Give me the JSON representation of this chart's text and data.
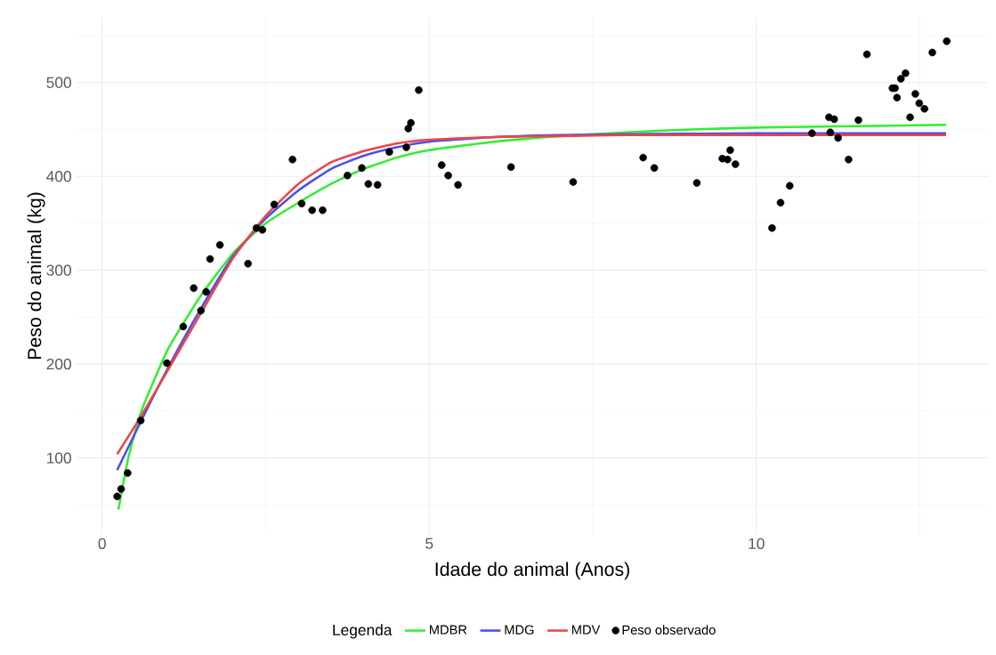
{
  "chart_data": {
    "type": "scatter",
    "xlabel": "Idade do animal (Anos)",
    "ylabel": "Peso do animal (kg)",
    "legend_title": "Legenda",
    "xlim": [
      -0.4,
      13.55
    ],
    "ylim": [
      19,
      569
    ],
    "xticks": [
      0,
      5,
      10
    ],
    "yticks": [
      100,
      200,
      300,
      400,
      500
    ],
    "grid": true,
    "legend": "bottom",
    "series": [
      {
        "name": "MDBR",
        "type": "line",
        "color": "#33ee33",
        "marker": "none",
        "x": [
          0.25,
          0.4,
          0.6,
          1,
          1.5,
          2,
          2.5,
          3,
          3.5,
          4,
          4.5,
          5,
          6,
          7,
          8,
          9,
          10,
          11,
          12,
          12.9
        ],
        "values": [
          45,
          100,
          150,
          215,
          272,
          318,
          350,
          372,
          392,
          408,
          420,
          428,
          437,
          443,
          447,
          450,
          452,
          453,
          454,
          455
        ]
      },
      {
        "name": "MDG",
        "type": "line",
        "color": "#4d4dee",
        "marker": "none",
        "x": [
          0.23,
          0.6,
          1,
          1.5,
          2,
          2.5,
          3,
          3.5,
          4,
          4.5,
          5,
          6,
          7,
          8,
          10,
          12.9
        ],
        "values": [
          87,
          140,
          195,
          258,
          315,
          355,
          385,
          408,
          422,
          431,
          437,
          442,
          444,
          445,
          446,
          446
        ]
      },
      {
        "name": "MDV",
        "type": "line",
        "color": "#ee4444",
        "marker": "none",
        "x": [
          0.23,
          0.6,
          1,
          1.5,
          2,
          2.5,
          3,
          3.5,
          4,
          4.5,
          5,
          6,
          7,
          8,
          10,
          12.9
        ],
        "values": [
          104,
          145,
          193,
          253,
          313,
          358,
          392,
          415,
          427,
          435,
          439,
          442,
          443,
          444,
          444,
          444
        ]
      },
      {
        "name": "Peso observado",
        "color": "#000000",
        "marker": "circle",
        "x": [
          0.23,
          0.29,
          0.39,
          0.59,
          0.99,
          1.24,
          1.4,
          1.51,
          1.59,
          1.65,
          1.8,
          2.23,
          2.36,
          2.45,
          2.63,
          2.91,
          3.05,
          3.21,
          3.37,
          3.75,
          3.97,
          4.07,
          4.21,
          4.39,
          4.65,
          4.68,
          4.72,
          4.84,
          5.19,
          5.29,
          5.44,
          6.25,
          7.2,
          8.27,
          8.44,
          9.09,
          9.48,
          9.56,
          9.6,
          9.68,
          10.24,
          10.37,
          10.51,
          10.85,
          11.11,
          11.13,
          11.19,
          11.25,
          11.41,
          11.56,
          11.69,
          12.08,
          12.12,
          12.15,
          12.21,
          12.28,
          12.35,
          12.43,
          12.49,
          12.57,
          12.69,
          12.91
        ],
        "values": [
          59,
          67,
          84,
          140,
          201,
          240,
          281,
          257,
          277,
          312,
          327,
          307,
          345,
          343,
          370,
          418,
          371,
          364,
          364,
          401,
          409,
          392,
          391,
          426,
          431,
          451,
          457,
          492,
          412,
          401,
          391,
          410,
          394,
          420,
          409,
          393,
          419,
          418,
          428,
          413,
          345,
          372,
          390,
          446,
          463,
          447,
          461,
          441,
          418,
          460,
          530,
          494,
          494,
          484,
          504,
          510,
          463,
          488,
          478,
          472,
          532,
          544
        ]
      }
    ]
  }
}
